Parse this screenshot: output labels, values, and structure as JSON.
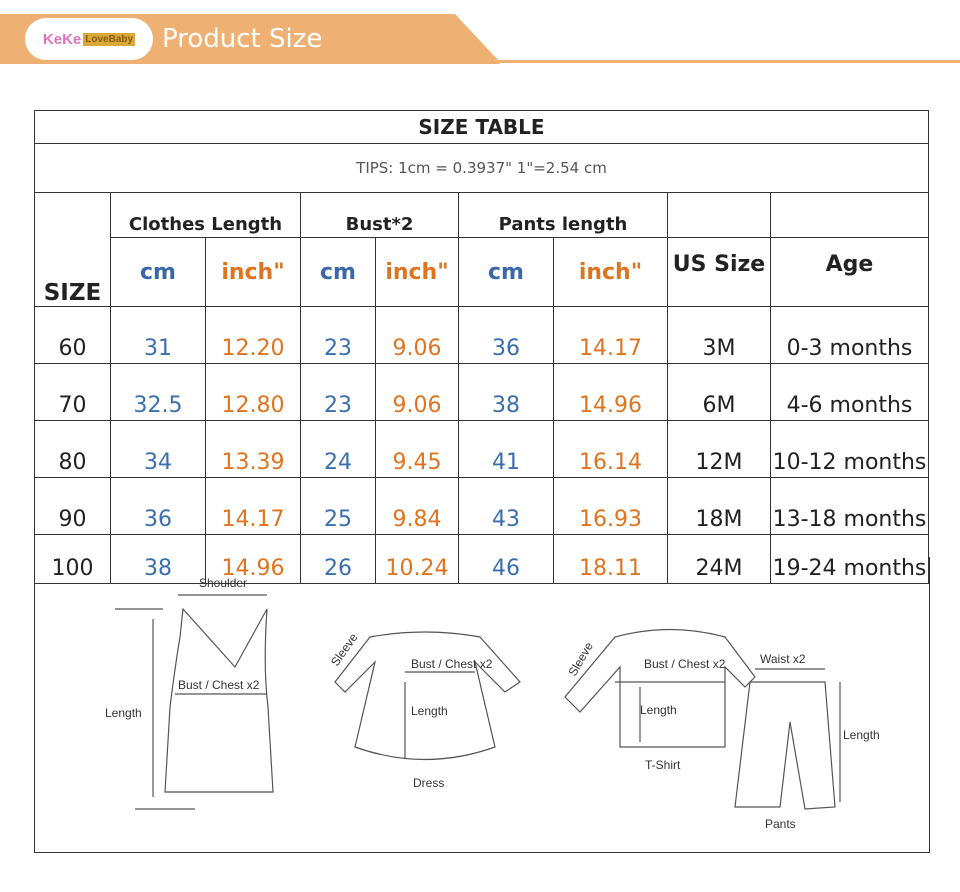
{
  "header": {
    "brand": "KeKe LoveBaby",
    "brand_a": "KeKe",
    "brand_b": "LoveBaby",
    "title": "Product Size",
    "color": "#efb173"
  },
  "table": {
    "title": "SIZE TABLE",
    "tips": "TIPS: 1cm = 0.3937\"   1\"=2.54 cm",
    "groups": [
      "Clothes Length",
      "Bust*2",
      "Pants length"
    ],
    "size_label": "SIZE",
    "cm": "cm",
    "inch": "inch\"",
    "us_size": "US Size",
    "age": "Age",
    "rows": [
      [
        "60",
        "31",
        "12.20",
        "23",
        "9.06",
        "36",
        "14.17",
        "3M",
        "0-3 months"
      ],
      [
        "70",
        "32.5",
        "12.80",
        "23",
        "9.06",
        "38",
        "14.96",
        "6M",
        "4-6 months"
      ],
      [
        "80",
        "34",
        "13.39",
        "24",
        "9.45",
        "41",
        "16.14",
        "12M",
        "10-12 months"
      ],
      [
        "90",
        "36",
        "14.17",
        "25",
        "9.84",
        "43",
        "16.93",
        "18M",
        "13-18 months"
      ],
      [
        "100",
        "38",
        "14.96",
        "26",
        "10.24",
        "46",
        "18.11",
        "24M",
        "19-24 months"
      ]
    ],
    "colors": {
      "cm": "#3a67a8",
      "inch": "#e0741e"
    }
  },
  "diagram": {
    "shoulder": "Shoulder",
    "bust": "Bust / Chest x2",
    "length": "Length",
    "sleeve": "Sleeve",
    "dress": "Dress",
    "tshirt": "T-Shirt",
    "waist": "Waist x2",
    "pants": "Pants"
  }
}
